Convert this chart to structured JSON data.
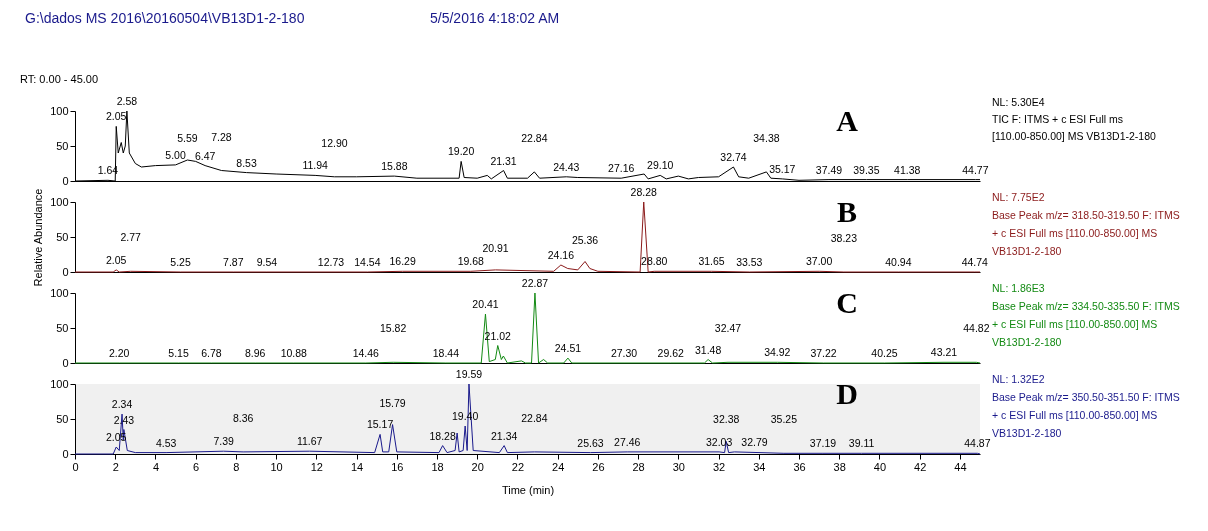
{
  "chart_data": [
    {
      "type": "line",
      "title": "A",
      "tick_labels": "y",
      "xlim": [
        0,
        45
      ],
      "ylim": [
        0,
        100
      ],
      "yticks": [
        0,
        50,
        100
      ],
      "grid": false,
      "x": [
        0,
        1.64,
        2.0,
        2.05,
        2.15,
        2.3,
        2.4,
        2.5,
        2.58,
        2.7,
        3.0,
        3.3,
        4.0,
        5.0,
        5.59,
        6.0,
        6.47,
        7.28,
        8.53,
        10.0,
        11.94,
        12.9,
        14.0,
        15.88,
        17.0,
        19.1,
        19.2,
        19.35,
        20.0,
        20.5,
        20.7,
        21.31,
        21.5,
        22.5,
        22.84,
        23.1,
        24.43,
        25.0,
        27.16,
        28.3,
        28.5,
        29.1,
        29.4,
        30.0,
        30.5,
        31.0,
        32.0,
        32.74,
        33.0,
        33.5,
        34.38,
        34.6,
        35.17,
        36.0,
        37.49,
        39.35,
        41.38,
        44.77,
        45.0
      ],
      "series": [
        {
          "color": "#000000",
          "values": [
            0,
            1,
            0,
            78,
            40,
            55,
            40,
            50,
            100,
            40,
            25,
            20,
            22,
            23,
            30,
            28,
            22,
            15,
            12,
            10,
            8,
            6,
            6,
            7,
            4,
            4,
            28,
            5,
            4,
            8,
            3,
            15,
            4,
            4,
            13,
            4,
            6,
            5,
            4,
            10,
            3,
            8,
            3,
            7,
            3,
            5,
            6,
            20,
            6,
            4,
            13,
            4,
            3,
            1,
            2,
            2,
            2,
            2,
            2
          ]
        }
      ],
      "annotations": [
        "G:\\dados MS 2016\\20160504\\VB13D1-2-180",
        "5/5/2016 4:18:02 AM",
        "RT: 0.00 - 45.00",
        "NL: 5.30E4",
        "TIC F: ITMS + c ESI Full ms",
        "[110.00-850.00]  MS VB13D1-2-180",
        {
          "text": "1.64",
          "x": 1.64,
          "y": 1
        },
        {
          "text": "2.05",
          "x": 2.05,
          "y": 78
        },
        {
          "text": "2.58",
          "x": 2.58,
          "y": 100
        },
        {
          "text": "5.00",
          "x": 5.0,
          "y": 23
        },
        {
          "text": "5.59",
          "x": 5.59,
          "y": 30
        },
        {
          "text": "6.47",
          "x": 6.47,
          "y": 22
        },
        {
          "text": "7.28",
          "x": 7.28,
          "y": 15
        },
        {
          "text": "8.53",
          "x": 8.53,
          "y": 12
        },
        {
          "text": "11.94",
          "x": 11.94,
          "y": 8
        },
        {
          "text": "12.90",
          "x": 12.9,
          "y": 6
        },
        {
          "text": "15.88",
          "x": 15.88,
          "y": 7
        },
        {
          "text": "19.20",
          "x": 19.2,
          "y": 28
        },
        {
          "text": "21.31",
          "x": 21.31,
          "y": 15
        },
        {
          "text": "22.84",
          "x": 22.84,
          "y": 13
        },
        {
          "text": "24.43",
          "x": 24.43,
          "y": 6
        },
        {
          "text": "27.16",
          "x": 27.16,
          "y": 4
        },
        {
          "text": "29.10",
          "x": 29.1,
          "y": 8
        },
        {
          "text": "32.74",
          "x": 32.74,
          "y": 20
        },
        {
          "text": "34.38",
          "x": 34.38,
          "y": 13
        },
        {
          "text": "35.17",
          "x": 35.17,
          "y": 3
        },
        {
          "text": "37.49",
          "x": 37.49,
          "y": 2
        },
        {
          "text": "39.35",
          "x": 39.35,
          "y": 2
        },
        {
          "text": "41.38",
          "x": 41.38,
          "y": 2
        },
        {
          "text": "44.77",
          "x": 44.77,
          "y": 2
        }
      ]
    },
    {
      "type": "line",
      "title": "B",
      "ylabel": "Relative Abundance",
      "tick_labels": "y",
      "xlim": [
        0,
        45
      ],
      "ylim": [
        0,
        100
      ],
      "yticks": [
        0,
        50,
        100
      ],
      "grid": false,
      "x": [
        0,
        1.9,
        2.05,
        2.2,
        2.77,
        5.25,
        7.87,
        9.54,
        12.73,
        14.54,
        16.29,
        19.68,
        20.91,
        23.8,
        24.16,
        24.5,
        25.0,
        25.36,
        25.6,
        26.0,
        28.1,
        28.28,
        28.5,
        28.8,
        31.65,
        33.53,
        37.0,
        38.23,
        40.94,
        44.74,
        45.0
      ],
      "series": [
        {
          "color": "#8b1a1a",
          "values": [
            0,
            0,
            3,
            0,
            1,
            0,
            0,
            0,
            0,
            0,
            1,
            1,
            3,
            1,
            10,
            5,
            3,
            15,
            5,
            1,
            0,
            100,
            0,
            1,
            1,
            0,
            1,
            0,
            0,
            0,
            0
          ]
        }
      ],
      "annotations": [
        "NL: 7.75E2",
        "Base Peak m/z= 318.50-319.50 F: ITMS",
        "+ c ESI Full ms [110.00-850.00]  MS",
        "VB13D1-2-180",
        {
          "text": "2.05",
          "x": 2.05,
          "y": 3
        },
        {
          "text": "2.77",
          "x": 2.77,
          "y": 1
        },
        {
          "text": "5.25",
          "x": 5.25,
          "y": 0
        },
        {
          "text": "7.87",
          "x": 7.87,
          "y": 0
        },
        {
          "text": "9.54",
          "x": 9.54,
          "y": 0
        },
        {
          "text": "12.73",
          "x": 12.73,
          "y": 0
        },
        {
          "text": "14.54",
          "x": 14.54,
          "y": 0
        },
        {
          "text": "16.29",
          "x": 16.29,
          "y": 1
        },
        {
          "text": "19.68",
          "x": 19.68,
          "y": 1
        },
        {
          "text": "20.91",
          "x": 20.91,
          "y": 3
        },
        {
          "text": "24.16",
          "x": 24.16,
          "y": 10
        },
        {
          "text": "25.36",
          "x": 25.36,
          "y": 15
        },
        {
          "text": "28.28",
          "x": 28.28,
          "y": 100
        },
        {
          "text": "28.80",
          "x": 28.8,
          "y": 1
        },
        {
          "text": "31.65",
          "x": 31.65,
          "y": 1
        },
        {
          "text": "33.53",
          "x": 33.53,
          "y": 0
        },
        {
          "text": "37.00",
          "x": 37.0,
          "y": 1
        },
        {
          "text": "38.23",
          "x": 38.23,
          "y": 0
        },
        {
          "text": "40.94",
          "x": 40.94,
          "y": 0
        },
        {
          "text": "44.74",
          "x": 44.74,
          "y": 0
        }
      ]
    },
    {
      "type": "line",
      "title": "C",
      "tick_labels": "y",
      "xlim": [
        0,
        45
      ],
      "ylim": [
        0,
        100
      ],
      "yticks": [
        0,
        50,
        100
      ],
      "grid": false,
      "x": [
        0,
        2.2,
        5.15,
        6.78,
        8.96,
        10.88,
        14.46,
        15.82,
        18.44,
        20.2,
        20.41,
        20.6,
        20.9,
        21.02,
        21.2,
        21.3,
        21.5,
        22.2,
        22.4,
        22.7,
        22.87,
        23.05,
        23.3,
        23.5,
        24.3,
        24.51,
        24.7,
        27.3,
        29.62,
        31.3,
        31.48,
        31.7,
        32.47,
        34.92,
        37.22,
        40.25,
        43.21,
        44.82,
        45.0
      ],
      "series": [
        {
          "color": "#138a13",
          "values": [
            0,
            0,
            0,
            0,
            0,
            0,
            0,
            1,
            0,
            0,
            70,
            2,
            5,
            25,
            5,
            10,
            0,
            3,
            0,
            0,
            100,
            0,
            5,
            0,
            0,
            7,
            0,
            0,
            0,
            0,
            5,
            0,
            1,
            1,
            0,
            0,
            1,
            1,
            0
          ]
        }
      ],
      "annotations": [
        "NL: 1.86E3",
        "Base Peak m/z= 334.50-335.50 F: ITMS",
        "+ c ESI Full ms [110.00-850.00]  MS",
        "VB13D1-2-180",
        {
          "text": "2.20",
          "x": 2.2,
          "y": 0
        },
        {
          "text": "5.15",
          "x": 5.15,
          "y": 0
        },
        {
          "text": "6.78",
          "x": 6.78,
          "y": 0
        },
        {
          "text": "8.96",
          "x": 8.96,
          "y": 0
        },
        {
          "text": "10.88",
          "x": 10.88,
          "y": 0
        },
        {
          "text": "14.46",
          "x": 14.46,
          "y": 0
        },
        {
          "text": "15.82",
          "x": 15.82,
          "y": 1
        },
        {
          "text": "18.44",
          "x": 18.44,
          "y": 0
        },
        {
          "text": "20.41",
          "x": 20.41,
          "y": 70
        },
        {
          "text": "21.02",
          "x": 21.02,
          "y": 25
        },
        {
          "text": "22.87",
          "x": 22.87,
          "y": 100
        },
        {
          "text": "24.51",
          "x": 24.51,
          "y": 7
        },
        {
          "text": "27.30",
          "x": 27.3,
          "y": 0
        },
        {
          "text": "29.62",
          "x": 29.62,
          "y": 0
        },
        {
          "text": "31.48",
          "x": 31.48,
          "y": 5
        },
        {
          "text": "32.47",
          "x": 32.47,
          "y": 1
        },
        {
          "text": "34.92",
          "x": 34.92,
          "y": 1
        },
        {
          "text": "37.22",
          "x": 37.22,
          "y": 0
        },
        {
          "text": "40.25",
          "x": 40.25,
          "y": 0
        },
        {
          "text": "43.21",
          "x": 43.21,
          "y": 1
        },
        {
          "text": "44.82",
          "x": 44.82,
          "y": 1
        }
      ]
    },
    {
      "type": "line",
      "title": "D",
      "xlabel": "Time (min)",
      "xlim": [
        0,
        45
      ],
      "ylim": [
        0,
        100
      ],
      "xticks": [
        0,
        2,
        4,
        6,
        8,
        10,
        12,
        14,
        16,
        18,
        20,
        22,
        24,
        26,
        28,
        30,
        32,
        34,
        36,
        38,
        40,
        42,
        44
      ],
      "yticks": [
        0,
        50,
        100
      ],
      "grid": false,
      "x": [
        0,
        1.9,
        2.05,
        2.2,
        2.34,
        2.4,
        2.43,
        2.6,
        3.0,
        4.53,
        7.39,
        8.36,
        11.67,
        14.9,
        15.17,
        15.3,
        15.6,
        15.79,
        16.0,
        18.1,
        18.28,
        18.5,
        18.9,
        19.0,
        19.1,
        19.3,
        19.4,
        19.5,
        19.59,
        19.7,
        19.8,
        21.1,
        21.34,
        21.5,
        22.84,
        25.63,
        27.46,
        32.03,
        32.3,
        32.38,
        32.5,
        32.79,
        35.25,
        37.19,
        39.11,
        44.87,
        45.0
      ],
      "series": [
        {
          "color": "#1a1a8c",
          "values": [
            0,
            0,
            10,
            5,
            57,
            20,
            35,
            5,
            2,
            2,
            4,
            3,
            4,
            2,
            28,
            3,
            3,
            42,
            3,
            2,
            12,
            2,
            5,
            30,
            3,
            5,
            40,
            5,
            100,
            50,
            5,
            2,
            12,
            2,
            3,
            2,
            3,
            3,
            2,
            18,
            2,
            3,
            1,
            1,
            1,
            1,
            0
          ]
        }
      ],
      "annotations": [
        "NL: 1.32E2",
        "Base Peak m/z= 350.50-351.50 F: ITMS",
        "+ c ESI Full ms [110.00-850.00]  MS",
        "VB13D1-2-180",
        {
          "text": "2.05",
          "x": 2.05,
          "y": 10
        },
        {
          "text": "2.34",
          "x": 2.34,
          "y": 57
        },
        {
          "text": "2.43",
          "x": 2.43,
          "y": 35
        },
        {
          "text": "4.53",
          "x": 4.53,
          "y": 2
        },
        {
          "text": "7.39",
          "x": 7.39,
          "y": 4
        },
        {
          "text": "8.36",
          "x": 8.36,
          "y": 3
        },
        {
          "text": "11.67",
          "x": 11.67,
          "y": 4
        },
        {
          "text": "15.17",
          "x": 15.17,
          "y": 28
        },
        {
          "text": "15.79",
          "x": 15.79,
          "y": 42
        },
        {
          "text": "18.28",
          "x": 18.28,
          "y": 12
        },
        {
          "text": "19.40",
          "x": 19.4,
          "y": 40
        },
        {
          "text": "19.59",
          "x": 19.59,
          "y": 100
        },
        {
          "text": "21.34",
          "x": 21.34,
          "y": 12
        },
        {
          "text": "22.84",
          "x": 22.84,
          "y": 3
        },
        {
          "text": "25.63",
          "x": 25.63,
          "y": 2
        },
        {
          "text": "27.46",
          "x": 27.46,
          "y": 3
        },
        {
          "text": "32.03",
          "x": 32.03,
          "y": 3
        },
        {
          "text": "32.38",
          "x": 32.38,
          "y": 18
        },
        {
          "text": "32.79",
          "x": 32.79,
          "y": 3
        },
        {
          "text": "35.25",
          "x": 35.25,
          "y": 1
        },
        {
          "text": "37.19",
          "x": 37.19,
          "y": 1
        },
        {
          "text": "39.11",
          "x": 39.11,
          "y": 1
        },
        {
          "text": "44.87",
          "x": 44.87,
          "y": 1
        }
      ]
    }
  ]
}
